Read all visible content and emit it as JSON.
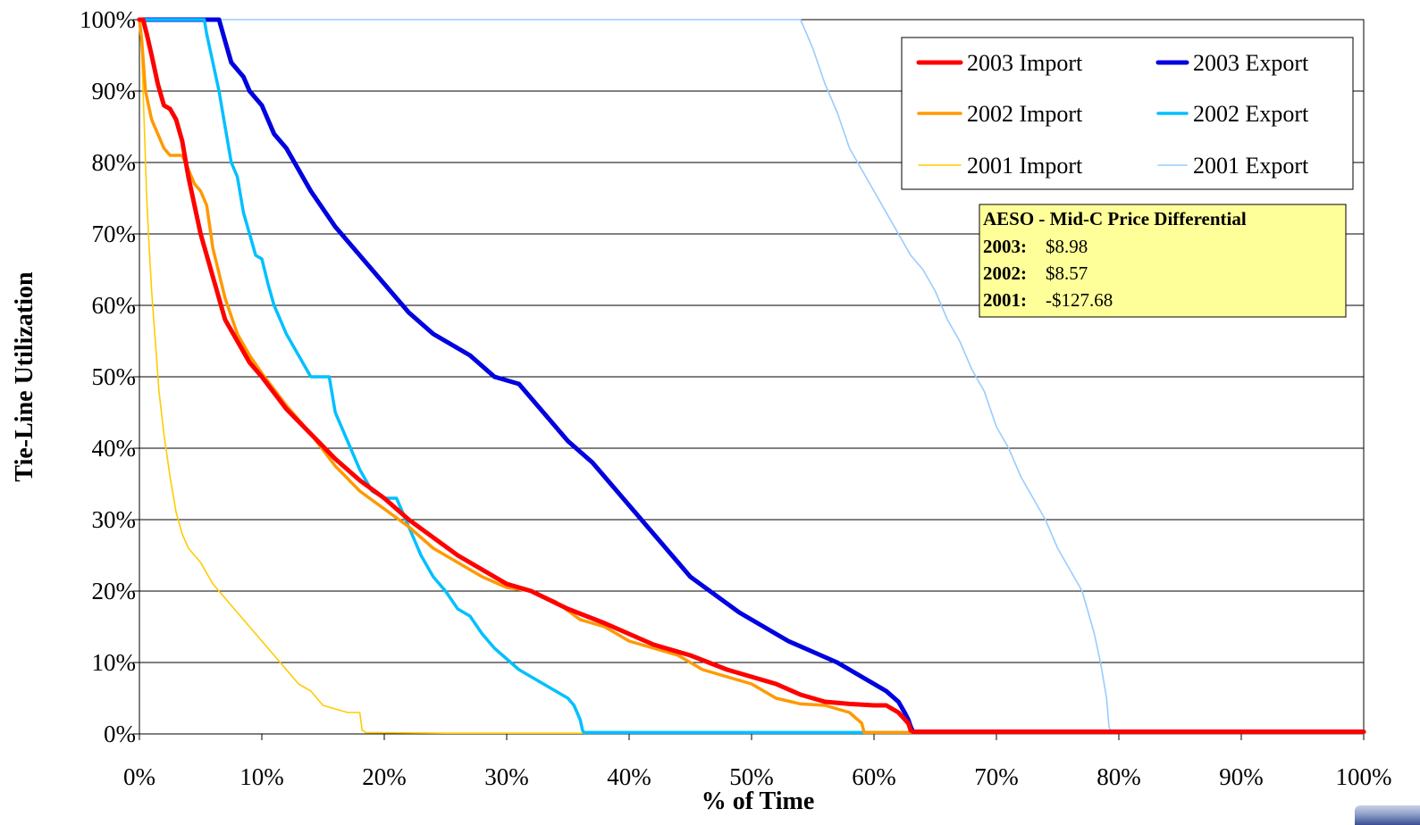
{
  "chart_data": {
    "type": "line",
    "title": "",
    "xlabel": "% of Time",
    "ylabel": "Tie-Line Utilization",
    "xlim": [
      0,
      100
    ],
    "ylim": [
      0,
      100
    ],
    "x_ticks": [
      "0%",
      "10%",
      "20%",
      "30%",
      "40%",
      "50%",
      "60%",
      "70%",
      "80%",
      "90%",
      "100%"
    ],
    "y_ticks": [
      "0%",
      "10%",
      "20%",
      "30%",
      "40%",
      "50%",
      "60%",
      "70%",
      "80%",
      "90%",
      "100%"
    ],
    "grid": "horizontal",
    "legend_position": "top-right",
    "series": [
      {
        "name": "2003 Import",
        "color": "#ff0000",
        "width": 5,
        "x": [
          0,
          0.3,
          0.6,
          1,
          1.5,
          2,
          2.5,
          3,
          3.5,
          4,
          5,
          6,
          7,
          8,
          9,
          10,
          12,
          14,
          16,
          18,
          20,
          22,
          24,
          26,
          28,
          30,
          32,
          35,
          38,
          40,
          42,
          45,
          48,
          50,
          52,
          54,
          56,
          58,
          60,
          61,
          62,
          62.8,
          63,
          63.2,
          100
        ],
        "y": [
          100,
          100,
          98,
          95,
          91,
          88,
          87.5,
          86,
          83,
          78,
          70,
          64,
          58,
          55,
          52,
          50,
          45.5,
          42,
          38.5,
          35.5,
          33,
          30,
          27.5,
          25,
          23,
          21,
          20,
          17.5,
          15.5,
          14,
          12.5,
          11,
          9,
          8,
          7,
          5.5,
          4.5,
          4.2,
          4,
          4,
          3,
          1.5,
          0.5,
          0.3,
          0.3
        ]
      },
      {
        "name": "2003 Export",
        "color": "#0000e0",
        "width": 5,
        "x": [
          0,
          6.5,
          7,
          7.5,
          8,
          8.5,
          9,
          10,
          11,
          12,
          14,
          16,
          18,
          20,
          22,
          24,
          26,
          27,
          29,
          31,
          33,
          35,
          37,
          39,
          41,
          43,
          45,
          47,
          49,
          51,
          53,
          55,
          57,
          59,
          61,
          62,
          62.5,
          62.8,
          63,
          63.2,
          100
        ],
        "y": [
          100,
          100,
          97,
          94,
          93,
          92,
          90,
          88,
          84,
          82,
          76,
          71,
          67,
          63,
          59,
          56,
          54,
          53,
          50,
          49,
          45,
          41,
          38,
          34,
          30,
          26,
          22,
          19.5,
          17,
          15,
          13,
          11.5,
          10,
          8,
          6,
          4.5,
          3,
          2,
          1,
          0.3,
          0.3
        ]
      },
      {
        "name": "2002 Import",
        "color": "#ff9900",
        "width": 3.5,
        "x": [
          0,
          0.2,
          0.5,
          1,
          1.5,
          2,
          2.5,
          3,
          3.5,
          4,
          4.5,
          5,
          5.5,
          6,
          7,
          8,
          9,
          10,
          12,
          14,
          16,
          18,
          20,
          22,
          24,
          26,
          28,
          30,
          32,
          34,
          36,
          38,
          40,
          42,
          44,
          46,
          48,
          50,
          52,
          54,
          56,
          58,
          59,
          59.2,
          100
        ],
        "y": [
          100,
          97,
          90,
          86,
          84,
          82,
          81,
          81,
          81,
          79,
          77,
          76,
          74,
          68,
          61,
          56,
          53,
          50.5,
          46,
          42,
          37.5,
          34,
          31.5,
          29,
          26,
          24,
          22,
          20.5,
          20,
          18.5,
          16,
          15,
          13,
          12,
          11,
          9,
          8,
          7,
          5,
          4.2,
          4,
          3,
          1.5,
          0.2,
          0.2
        ]
      },
      {
        "name": "2002 Export",
        "color": "#00c0ff",
        "width": 3.5,
        "x": [
          0,
          5.3,
          5.5,
          6,
          6.5,
          7,
          7.5,
          8,
          8.5,
          9,
          9.5,
          10,
          10.5,
          11,
          11.5,
          12,
          13,
          14,
          15,
          15.5,
          16,
          17,
          18,
          19,
          20,
          21,
          21.5,
          22,
          23,
          24,
          25,
          26,
          27,
          28,
          29,
          30,
          31,
          32,
          33,
          34,
          35,
          35.5,
          36,
          36.2,
          36.3,
          100
        ],
        "y": [
          100,
          100,
          98,
          94,
          90,
          85,
          80,
          78,
          73,
          70,
          67,
          66.5,
          63,
          60,
          58,
          56,
          53,
          50,
          50,
          50,
          45,
          41,
          37,
          34,
          33,
          33,
          31,
          29,
          25,
          22,
          20,
          17.5,
          16.5,
          14,
          12,
          10.5,
          9,
          8,
          7,
          6,
          5,
          4,
          2,
          0.5,
          0.2,
          0.2
        ]
      },
      {
        "name": "2001 Import",
        "color": "#ffcc00",
        "width": 1.6,
        "x": [
          0,
          0.2,
          0.4,
          0.6,
          0.8,
          1,
          1.3,
          1.6,
          2,
          2.5,
          3,
          3.5,
          4,
          5,
          6,
          7,
          8,
          9,
          10,
          11,
          12,
          13,
          14,
          15,
          16,
          17,
          18,
          18.2,
          18.5,
          25,
          100
        ],
        "y": [
          100,
          95,
          85,
          75,
          68,
          62,
          55,
          48,
          42,
          36,
          31,
          28,
          26,
          24,
          21,
          19,
          17,
          15,
          13,
          11,
          9,
          7,
          6,
          4,
          3.5,
          3,
          3,
          0.5,
          0.2,
          0.1,
          0.1
        ]
      },
      {
        "name": "2001 Export",
        "color": "#99ccff",
        "width": 1.6,
        "x": [
          0,
          54,
          55,
          56,
          57,
          58,
          59,
          60,
          61,
          62,
          63,
          64,
          65,
          66,
          67,
          68,
          69,
          70,
          71,
          72,
          73,
          74,
          75,
          76,
          77,
          77.5,
          78,
          78.5,
          79,
          79.2,
          79.4,
          100
        ],
        "y": [
          100,
          100,
          96,
          91,
          87,
          82,
          79,
          76,
          73,
          70,
          67,
          65,
          62,
          58,
          55,
          51,
          48,
          43,
          40,
          36,
          33,
          30,
          26,
          23,
          20,
          17,
          14,
          10,
          5,
          1,
          0.2,
          0.2
        ]
      }
    ],
    "legend": {
      "columns": [
        [
          "2003 Import",
          "2002 Import",
          "2001 Import"
        ],
        [
          "2003 Export",
          "2002 Export",
          "2001 Export"
        ]
      ]
    },
    "annotation": {
      "background": "#ffff99",
      "heading": "AESO - Mid-C Price Differential",
      "rows": [
        {
          "label": "2003:",
          "value": "$8.98"
        },
        {
          "label": "2002:",
          "value": "$8.57"
        },
        {
          "label": "2001:",
          "value": "-$127.68"
        }
      ]
    }
  }
}
